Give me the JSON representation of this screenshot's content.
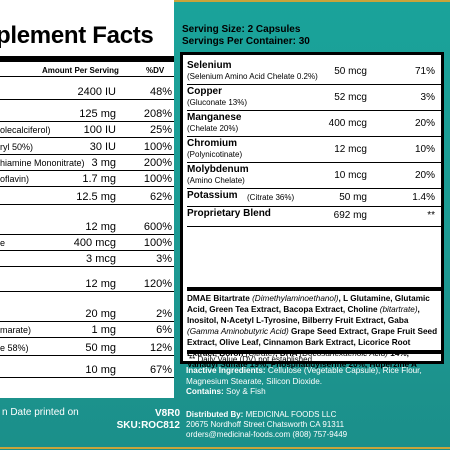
{
  "left": {
    "title": "plement Facts",
    "col_amount": "Amount Per Serving",
    "col_dv": "%DV",
    "rows": [
      {
        "name": "",
        "amount": "2400 IU",
        "dv": "48%"
      },
      {
        "name": "",
        "amount": "125 mg",
        "dv": "208%"
      },
      {
        "name": "olecalciferol)",
        "amount": "100 IU",
        "dv": "25%"
      },
      {
        "name": "ryl 50%)",
        "amount": "30 IU",
        "dv": "100%"
      },
      {
        "name": "hiamine Mononitrate)",
        "amount": "3 mg",
        "dv": "200%"
      },
      {
        "name": "oflavin)",
        "amount": "1.7 mg",
        "dv": "100%"
      },
      {
        "name": "",
        "amount": "12.5 mg",
        "dv": "62%"
      },
      {
        "name": "",
        "amount": "12 mg",
        "dv": "600%"
      },
      {
        "name": "e",
        "amount": "400 mcg",
        "dv": "100%"
      },
      {
        "name": "",
        "amount": "3 mcg",
        "dv": "3%"
      },
      {
        "name": "",
        "amount": "12 mg",
        "dv": "120%"
      },
      {
        "name": "",
        "amount": "20 mg",
        "dv": "2%"
      },
      {
        "name": "marate)",
        "amount": "1 mg",
        "dv": "6%"
      },
      {
        "name": "e 58%)",
        "amount": "50 mg",
        "dv": "12%"
      },
      {
        "name": "",
        "amount": "10 mg",
        "dv": "67%"
      }
    ],
    "footer_text": "n Date printed on"
  },
  "serving": {
    "size": "Serving Size: 2 Capsules",
    "per_container": "Servings Per Container: 30"
  },
  "right_rows": [
    {
      "name": "Selenium",
      "sub": "(Selenium Amino Acid Chelate 0.2%)",
      "amount": "50 mcg",
      "dv": "71%"
    },
    {
      "name": "Copper",
      "sub": "(Gluconate 13%)",
      "amount": "52 mcg",
      "dv": "3%"
    },
    {
      "name": "Manganese",
      "sub": "(Chelate 20%)",
      "amount": "400 mcg",
      "dv": "20%"
    },
    {
      "name": "Chromium",
      "sub": "(Polynicotinate)",
      "amount": "12 mcg",
      "dv": "10%"
    },
    {
      "name": "Molybdenum",
      "sub": "(Amino Chelate)",
      "amount": "10 mcg",
      "dv": "20%"
    },
    {
      "name": "Potassium",
      "sub": "(Citrate 36%)",
      "amount": "50 mg",
      "dv": "1.4%"
    },
    {
      "name": "Proprietary Blend",
      "sub": "",
      "amount": "692 mg",
      "dv": "**"
    }
  ],
  "blend": {
    "ingredients": "DMAE Bitartrate (Dimethylaminoethanol), L Glutamine, Glutamic Acid, Green Tea Extract, Bacopa Extract, Choline (bitartrate), Inositol, N-Acetyl L-Tyrosine, Bilberry Fruit Extract, Gaba (Gamma Aminobutyric Acid) Grape Seed Extract, Grape Fruit Seed Extract, Olive Leaf, Cinnamon Bark Extract, Licorice Root Extract, Boron (Citrate), DHA (Docosahexaenoic Acid) 14%, Vanadyl Sulfate 19%, Phosphatidylserine 20%, Huperzine A"
  },
  "dv_note": "** Daily Value (DV) not established",
  "inactive": {
    "label": "Inactive Ingredients:",
    "text": " Cellulose (Vegetable Capsule), Rice Flour, Magnesium Stearate, Silicon Dioxide.",
    "contains_label": "Contains:",
    "contains": " Soy & Fish"
  },
  "distributed": {
    "label": "Distributed By:",
    "company": " MEDICINAL FOODS LLC",
    "address": "20675 Nordhoff Street Chatsworth CA 91311",
    "contact": "orders@medicinal-foods.com (808) 757-9449"
  },
  "codes": {
    "lot": "V8R0",
    "sku": "SKU:ROC812"
  },
  "colors": {
    "teal": "#1aa39a",
    "gold": "#c9a43a"
  }
}
